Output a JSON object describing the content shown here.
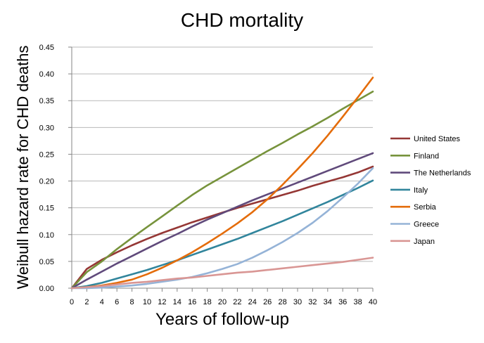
{
  "chart_data": {
    "type": "line",
    "title": "CHD mortality",
    "xlabel": "Years of follow-up",
    "ylabel": "Weibull hazard rate for CHD deaths",
    "xlim": [
      0,
      40
    ],
    "ylim": [
      0,
      0.45
    ],
    "grid": true,
    "legend": "right",
    "x_ticks": [
      "0",
      "2",
      "4",
      "6",
      "8",
      "10",
      "12",
      "14",
      "16",
      "18",
      "20",
      "22",
      "24",
      "26",
      "28",
      "30",
      "32",
      "34",
      "36",
      "38",
      "40"
    ],
    "y_ticks": [
      "0.00",
      "0.05",
      "0.10",
      "0.15",
      "0.20",
      "0.25",
      "0.30",
      "0.35",
      "0.40",
      "0.45"
    ],
    "x": [
      0,
      2,
      4,
      6,
      8,
      10,
      12,
      14,
      16,
      18,
      20,
      22,
      24,
      26,
      28,
      30,
      32,
      34,
      36,
      38,
      40
    ],
    "series": [
      {
        "name": "United States",
        "color": "#953735",
        "values": [
          0,
          0.036,
          0.053,
          0.067,
          0.08,
          0.092,
          0.103,
          0.113,
          0.123,
          0.132,
          0.141,
          0.15,
          0.158,
          0.166,
          0.174,
          0.182,
          0.191,
          0.199,
          0.207,
          0.216,
          0.227
        ]
      },
      {
        "name": "Finland",
        "color": "#77933C",
        "values": [
          0,
          0.03,
          0.05,
          0.073,
          0.094,
          0.114,
          0.134,
          0.154,
          0.174,
          0.192,
          0.208,
          0.224,
          0.24,
          0.256,
          0.271,
          0.287,
          0.302,
          0.318,
          0.335,
          0.351,
          0.367
        ]
      },
      {
        "name": "The Netherlands",
        "color": "#604A7B",
        "values": [
          0,
          0.016,
          0.031,
          0.046,
          0.06,
          0.074,
          0.088,
          0.101,
          0.115,
          0.128,
          0.14,
          0.152,
          0.164,
          0.175,
          0.186,
          0.197,
          0.208,
          0.219,
          0.23,
          0.241,
          0.252
        ]
      },
      {
        "name": "Italy",
        "color": "#31859C",
        "values": [
          0,
          0.004,
          0.01,
          0.018,
          0.026,
          0.034,
          0.043,
          0.052,
          0.062,
          0.072,
          0.082,
          0.092,
          0.103,
          0.114,
          0.125,
          0.137,
          0.149,
          0.161,
          0.174,
          0.187,
          0.201
        ]
      },
      {
        "name": "Serbia",
        "color": "#E46C0A",
        "values": [
          0,
          0.002,
          0.005,
          0.01,
          0.016,
          0.026,
          0.038,
          0.052,
          0.067,
          0.084,
          0.102,
          0.121,
          0.142,
          0.166,
          0.193,
          0.222,
          0.252,
          0.285,
          0.32,
          0.356,
          0.393
        ]
      },
      {
        "name": "Greece",
        "color": "#95B3D7",
        "values": [
          0,
          0.0,
          0.001,
          0.003,
          0.005,
          0.008,
          0.012,
          0.016,
          0.021,
          0.028,
          0.036,
          0.045,
          0.057,
          0.071,
          0.086,
          0.103,
          0.122,
          0.144,
          0.169,
          0.195,
          0.224
        ]
      },
      {
        "name": "Japan",
        "color": "#D99694",
        "values": [
          0,
          0.002,
          0.004,
          0.007,
          0.01,
          0.012,
          0.015,
          0.018,
          0.02,
          0.023,
          0.026,
          0.029,
          0.031,
          0.034,
          0.037,
          0.04,
          0.043,
          0.046,
          0.049,
          0.053,
          0.057
        ]
      }
    ]
  }
}
